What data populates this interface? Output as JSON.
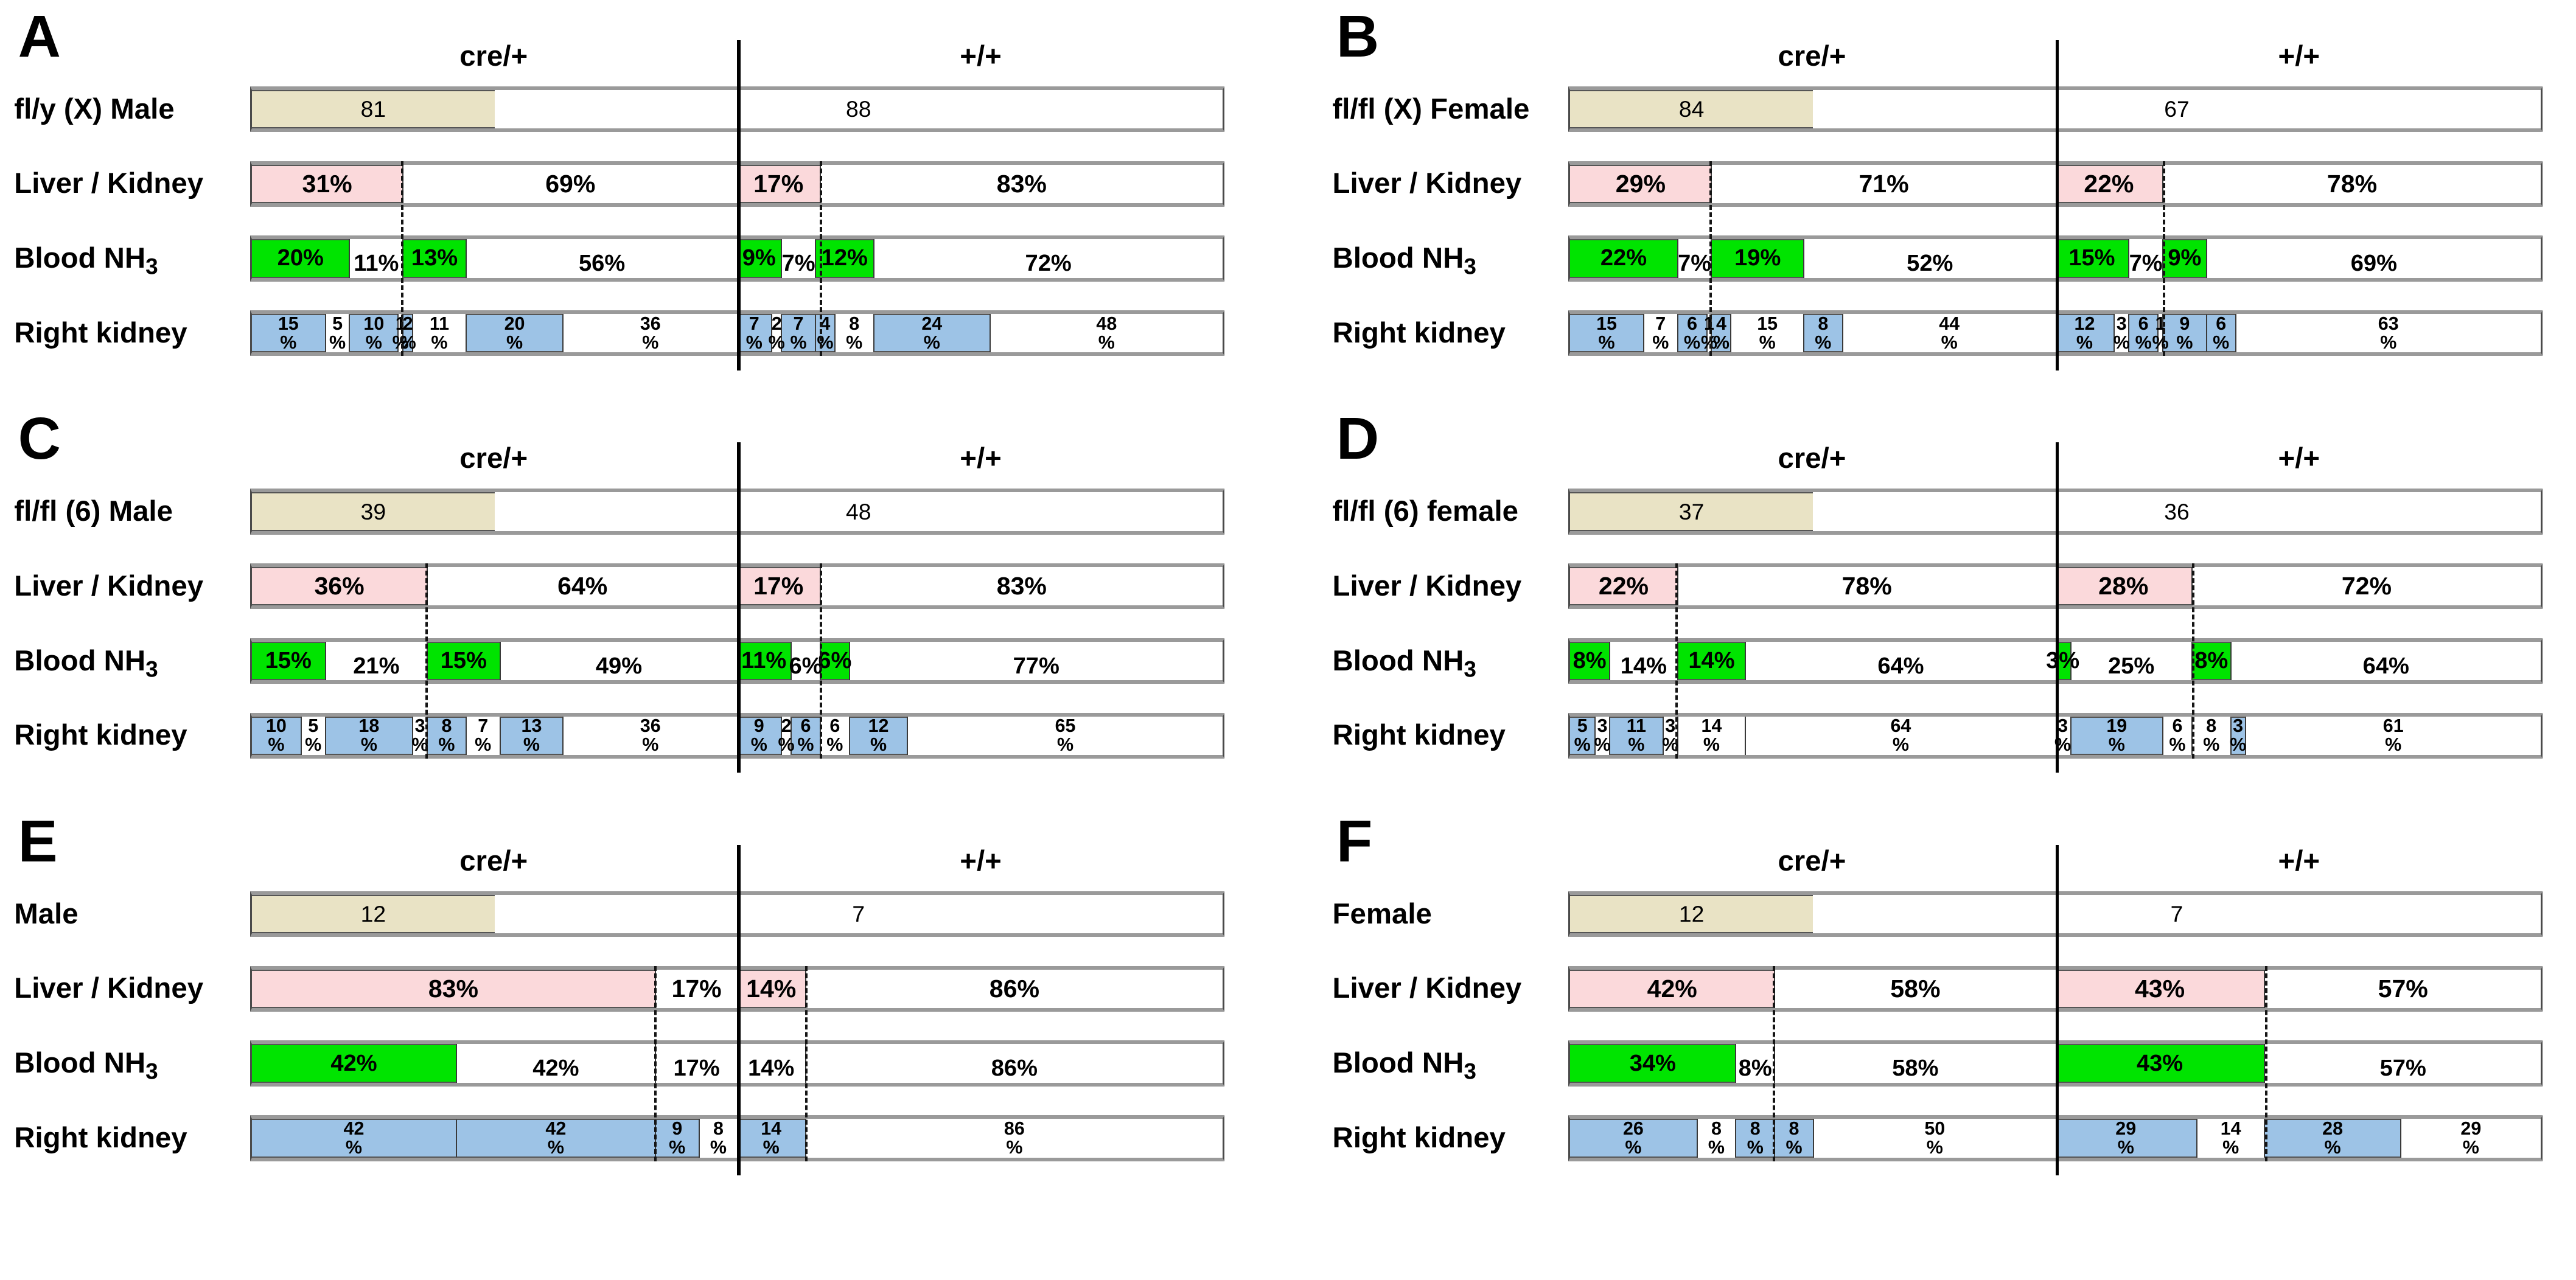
{
  "colors": {
    "tan": "#e9e3c5",
    "pink": "#fbd9db",
    "green": "#00e400",
    "blue": "#9dc3e6",
    "white": "#ffffff"
  },
  "headers": {
    "left": "cre/+",
    "right": "+/+"
  },
  "row_labels": {
    "liver": "Liver / Kidney",
    "blood_prefix": "Blood NH",
    "blood_sub": "3",
    "kidney": "Right kidney"
  },
  "chart_data": {
    "type": "bar",
    "note": "Six panels of horizontal 100% stacked bars; each panel split into cre/+ and +/+ halves. Row 1 = litter counts, other rows = percentages.",
    "panels": [
      {
        "letter": "A",
        "subject": "fl/y (X) Male",
        "counts": {
          "cre": "81",
          "wt": "88"
        },
        "guide_cre": 31,
        "guide_wt": 17,
        "liver": {
          "cre": [
            {
              "v": 31,
              "c": "pink"
            },
            {
              "v": 69,
              "c": "white"
            }
          ],
          "wt": [
            {
              "v": 17,
              "c": "pink"
            },
            {
              "v": 83,
              "c": "white"
            }
          ]
        },
        "blood": {
          "cre": [
            {
              "v": 20,
              "c": "green"
            },
            {
              "v": 11,
              "c": "white"
            },
            {
              "v": 13,
              "c": "green"
            },
            {
              "v": 56,
              "c": "white"
            }
          ],
          "wt": [
            {
              "v": 9,
              "c": "green"
            },
            {
              "v": 7,
              "c": "white"
            },
            {
              "v": 12,
              "c": "green"
            },
            {
              "v": 72,
              "c": "white"
            }
          ]
        },
        "kidney": {
          "cre": [
            {
              "v": 15,
              "c": "blue"
            },
            {
              "v": 5,
              "c": "white"
            },
            {
              "v": 10,
              "c": "blue"
            },
            {
              "v": 1,
              "c": "white"
            },
            {
              "v": 2,
              "c": "blue"
            },
            {
              "v": 11,
              "c": "white"
            },
            {
              "v": 20,
              "c": "blue"
            },
            {
              "v": 36,
              "c": "white"
            }
          ],
          "wt": [
            {
              "v": 7,
              "c": "blue"
            },
            {
              "v": 2,
              "c": "white"
            },
            {
              "v": 7,
              "c": "blue"
            },
            {
              "v": 4,
              "c": "blue"
            },
            {
              "v": 8,
              "c": "white"
            },
            {
              "v": 24,
              "c": "blue"
            },
            {
              "v": 48,
              "c": "white"
            }
          ]
        }
      },
      {
        "letter": "B",
        "subject": "fl/fl (X) Female",
        "counts": {
          "cre": "84",
          "wt": "67"
        },
        "guide_cre": 29,
        "guide_wt": 22,
        "liver": {
          "cre": [
            {
              "v": 29,
              "c": "pink"
            },
            {
              "v": 71,
              "c": "white"
            }
          ],
          "wt": [
            {
              "v": 22,
              "c": "pink"
            },
            {
              "v": 78,
              "c": "white"
            }
          ]
        },
        "blood": {
          "cre": [
            {
              "v": 22,
              "c": "green"
            },
            {
              "v": 7,
              "c": "white"
            },
            {
              "v": 19,
              "c": "green"
            },
            {
              "v": 52,
              "c": "white"
            }
          ],
          "wt": [
            {
              "v": 15,
              "c": "green"
            },
            {
              "v": 7,
              "c": "white"
            },
            {
              "v": 9,
              "c": "green"
            },
            {
              "v": 69,
              "c": "white"
            }
          ]
        },
        "kidney": {
          "cre": [
            {
              "v": 15,
              "c": "blue"
            },
            {
              "v": 7,
              "c": "white"
            },
            {
              "v": 6,
              "c": "blue"
            },
            {
              "v": 1,
              "c": "white"
            },
            {
              "v": 4,
              "c": "blue"
            },
            {
              "v": 15,
              "c": "white"
            },
            {
              "v": 8,
              "c": "blue"
            },
            {
              "v": 44,
              "c": "white"
            }
          ],
          "wt": [
            {
              "v": 12,
              "c": "blue"
            },
            {
              "v": 3,
              "c": "white"
            },
            {
              "v": 6,
              "c": "blue"
            },
            {
              "v": 1,
              "c": "white"
            },
            {
              "v": 9,
              "c": "blue"
            },
            {
              "v": 6,
              "c": "blue"
            },
            {
              "v": 63,
              "c": "white"
            }
          ]
        }
      },
      {
        "letter": "C",
        "subject": "fl/fl (6) Male",
        "counts": {
          "cre": "39",
          "wt": "48"
        },
        "guide_cre": 36,
        "guide_wt": 17,
        "liver": {
          "cre": [
            {
              "v": 36,
              "c": "pink"
            },
            {
              "v": 64,
              "c": "white"
            }
          ],
          "wt": [
            {
              "v": 17,
              "c": "pink"
            },
            {
              "v": 83,
              "c": "white"
            }
          ]
        },
        "blood": {
          "cre": [
            {
              "v": 15,
              "c": "green"
            },
            {
              "v": 21,
              "c": "white"
            },
            {
              "v": 15,
              "c": "green"
            },
            {
              "v": 49,
              "c": "white"
            }
          ],
          "wt": [
            {
              "v": 11,
              "c": "green"
            },
            {
              "v": 6,
              "c": "white"
            },
            {
              "v": 6,
              "c": "green"
            },
            {
              "v": 77,
              "c": "white"
            }
          ]
        },
        "kidney": {
          "cre": [
            {
              "v": 10,
              "c": "blue"
            },
            {
              "v": 5,
              "c": "white"
            },
            {
              "v": 18,
              "c": "blue"
            },
            {
              "v": 3,
              "c": "white"
            },
            {
              "v": 8,
              "c": "blue"
            },
            {
              "v": 7,
              "c": "white"
            },
            {
              "v": 13,
              "c": "blue"
            },
            {
              "v": 36,
              "c": "white"
            }
          ],
          "wt": [
            {
              "v": 9,
              "c": "blue"
            },
            {
              "v": 2,
              "c": "white"
            },
            {
              "v": 6,
              "c": "blue"
            },
            {
              "v": 6,
              "c": "white"
            },
            {
              "v": 12,
              "c": "blue"
            },
            {
              "v": 65,
              "c": "white"
            }
          ]
        }
      },
      {
        "letter": "D",
        "subject": "fl/fl (6) female",
        "counts": {
          "cre": "37",
          "wt": "36"
        },
        "guide_cre": 22,
        "guide_wt": 28,
        "liver": {
          "cre": [
            {
              "v": 22,
              "c": "pink"
            },
            {
              "v": 78,
              "c": "white"
            }
          ],
          "wt": [
            {
              "v": 28,
              "c": "pink"
            },
            {
              "v": 72,
              "c": "white"
            }
          ]
        },
        "blood": {
          "cre": [
            {
              "v": 8,
              "c": "green"
            },
            {
              "v": 14,
              "c": "white"
            },
            {
              "v": 14,
              "c": "green"
            },
            {
              "v": 64,
              "c": "white"
            }
          ],
          "wt": [
            {
              "v": 3,
              "c": "green"
            },
            {
              "v": 25,
              "c": "white"
            },
            {
              "v": 8,
              "c": "green"
            },
            {
              "v": 64,
              "c": "white"
            }
          ]
        },
        "kidney": {
          "cre": [
            {
              "v": 5,
              "c": "blue"
            },
            {
              "v": 3,
              "c": "white"
            },
            {
              "v": 11,
              "c": "blue"
            },
            {
              "v": 3,
              "c": "white"
            },
            {
              "v": 14,
              "c": "white"
            },
            {
              "v": 64,
              "c": "white"
            }
          ],
          "wt": [
            {
              "v": 3,
              "c": "white"
            },
            {
              "v": 19,
              "c": "blue"
            },
            {
              "v": 6,
              "c": "white"
            },
            {
              "v": 8,
              "c": "white"
            },
            {
              "v": 3,
              "c": "blue"
            },
            {
              "v": 61,
              "c": "white"
            }
          ]
        }
      },
      {
        "letter": "E",
        "subject": "Male",
        "counts": {
          "cre": "12",
          "wt": "7"
        },
        "guide_cre": 83,
        "guide_wt": 14,
        "liver": {
          "cre": [
            {
              "v": 83,
              "c": "pink"
            },
            {
              "v": 17,
              "c": "white"
            }
          ],
          "wt": [
            {
              "v": 14,
              "c": "pink"
            },
            {
              "v": 86,
              "c": "white"
            }
          ]
        },
        "blood": {
          "cre": [
            {
              "v": 42,
              "c": "green"
            },
            {
              "v": 42,
              "c": "white",
              "w": 41
            },
            {
              "v": 17,
              "c": "white"
            }
          ],
          "wt": [
            {
              "v": 14,
              "c": "white"
            },
            {
              "v": 86,
              "c": "white"
            }
          ]
        },
        "kidney": {
          "cre": [
            {
              "v": 42,
              "c": "blue"
            },
            {
              "v": 42,
              "c": "blue",
              "w": 41
            },
            {
              "v": 9,
              "c": "blue"
            },
            {
              "v": 8,
              "c": "white"
            }
          ],
          "wt": [
            {
              "v": 14,
              "c": "blue"
            },
            {
              "v": 86,
              "c": "white"
            }
          ]
        }
      },
      {
        "letter": "F",
        "subject": "Female",
        "counts": {
          "cre": "12",
          "wt": "7"
        },
        "guide_cre": 42,
        "guide_wt": 43,
        "liver": {
          "cre": [
            {
              "v": 42,
              "c": "pink"
            },
            {
              "v": 58,
              "c": "white"
            }
          ],
          "wt": [
            {
              "v": 43,
              "c": "pink"
            },
            {
              "v": 57,
              "c": "white"
            }
          ]
        },
        "blood": {
          "cre": [
            {
              "v": 34,
              "c": "green"
            },
            {
              "v": 8,
              "c": "white"
            },
            {
              "v": 58,
              "c": "white"
            }
          ],
          "wt": [
            {
              "v": 43,
              "c": "green"
            },
            {
              "v": 57,
              "c": "white"
            }
          ]
        },
        "kidney": {
          "cre": [
            {
              "v": 26,
              "c": "blue"
            },
            {
              "v": 8,
              "c": "white"
            },
            {
              "v": 8,
              "c": "blue"
            },
            {
              "v": 8,
              "c": "blue"
            },
            {
              "v": 50,
              "c": "white"
            }
          ],
          "wt": [
            {
              "v": 29,
              "c": "blue"
            },
            {
              "v": 14,
              "c": "white"
            },
            {
              "v": 28,
              "c": "blue"
            },
            {
              "v": 29,
              "c": "white"
            }
          ]
        }
      }
    ]
  }
}
